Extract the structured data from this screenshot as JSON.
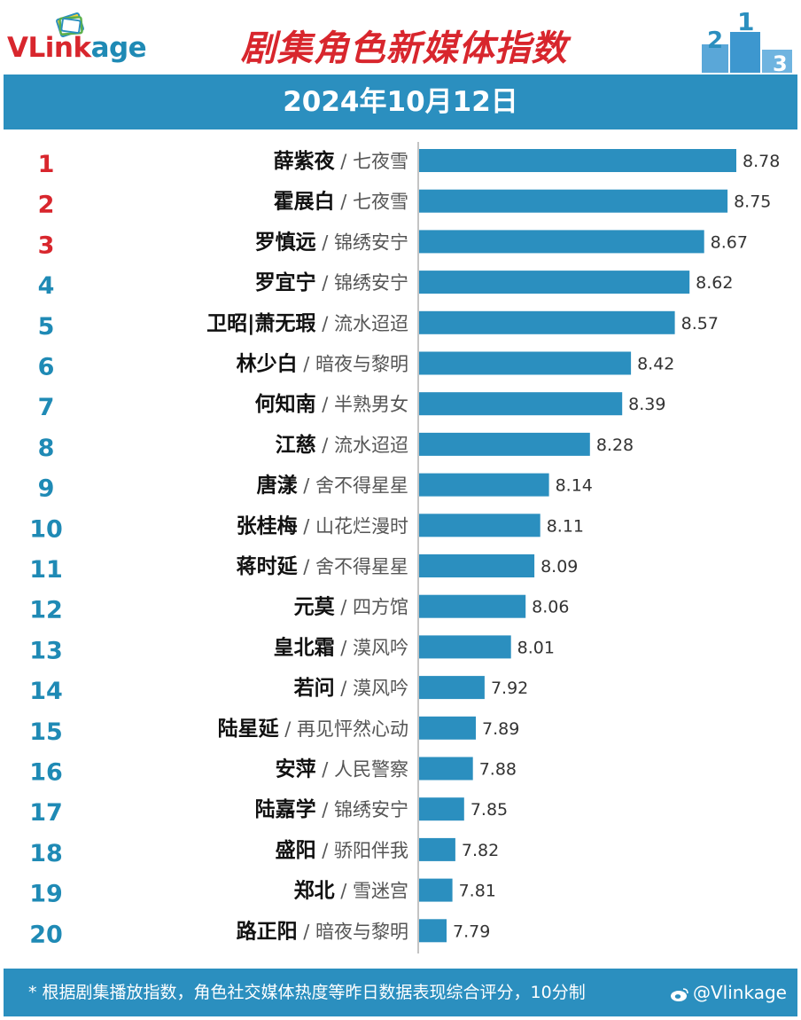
{
  "header": {
    "logo_text_a": "VLink",
    "logo_text_b": "age",
    "title": "剧集角色新媒体指数",
    "date": "2024年10月12日"
  },
  "colors": {
    "bar": "#2b8fbf",
    "band": "#2b8fbf",
    "title_red": "#d8262d",
    "rank_top3": "#d8262d",
    "rank_other": "#1f8ab5"
  },
  "chart_data": {
    "type": "bar",
    "orientation": "horizontal",
    "rows": [
      {
        "rank": "1",
        "character": "薛紫夜",
        "drama": "七夜雪",
        "value": 8.78
      },
      {
        "rank": "2",
        "character": "霍展白",
        "drama": "七夜雪",
        "value": 8.75
      },
      {
        "rank": "3",
        "character": "罗慎远",
        "drama": "锦绣安宁",
        "value": 8.67
      },
      {
        "rank": "4",
        "character": "罗宜宁",
        "drama": "锦绣安宁",
        "value": 8.62
      },
      {
        "rank": "5",
        "character": "卫昭|萧无瑕",
        "drama": "流水迢迢",
        "value": 8.57
      },
      {
        "rank": "6",
        "character": "林少白",
        "drama": "暗夜与黎明",
        "value": 8.42
      },
      {
        "rank": "7",
        "character": "何知南",
        "drama": "半熟男女",
        "value": 8.39
      },
      {
        "rank": "8",
        "character": "江慈",
        "drama": "流水迢迢",
        "value": 8.28
      },
      {
        "rank": "9",
        "character": "唐漾",
        "drama": "舍不得星星",
        "value": 8.14
      },
      {
        "rank": "10",
        "character": "张桂梅",
        "drama": "山花烂漫时",
        "value": 8.11
      },
      {
        "rank": "11",
        "character": "蒋时延",
        "drama": "舍不得星星",
        "value": 8.09
      },
      {
        "rank": "12",
        "character": "元莫",
        "drama": "四方馆",
        "value": 8.06
      },
      {
        "rank": "13",
        "character": "皇北霜",
        "drama": "漠风吟",
        "value": 8.01
      },
      {
        "rank": "14",
        "character": "若问",
        "drama": "漠风吟",
        "value": 7.92
      },
      {
        "rank": "15",
        "character": "陆星延",
        "drama": "再见怦然心动",
        "value": 7.89
      },
      {
        "rank": "16",
        "character": "安萍",
        "drama": "人民警察",
        "value": 7.88
      },
      {
        "rank": "17",
        "character": "陆嘉学",
        "drama": "锦绣安宁",
        "value": 7.85
      },
      {
        "rank": "18",
        "character": "盛阳",
        "drama": "骄阳伴我",
        "value": 7.82
      },
      {
        "rank": "19",
        "character": "郑北",
        "drama": "雪迷宫",
        "value": 7.81
      },
      {
        "rank": "20",
        "character": "路正阳",
        "drama": "暗夜与黎明",
        "value": 7.79
      }
    ],
    "separator": " / ",
    "value_format": "2 decimals"
  },
  "footer": {
    "note": "* 根据剧集播放指数，角色社交媒体热度等昨日数据表现综合评分，10分制",
    "watermark": "@Vlinkage"
  }
}
